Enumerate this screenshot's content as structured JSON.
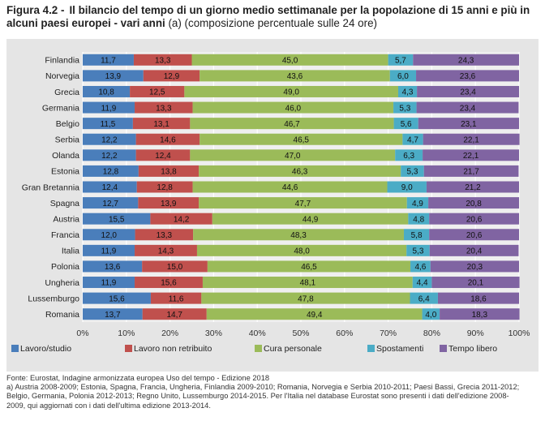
{
  "figure": {
    "number": "Figura 4.2 -",
    "title_bold": "Il bilancio del tempo di un giorno medio settimanale per la popolazione di 15 anni e più in alcuni paesi europei - vari anni",
    "title_note": "(a) (composizione percentuale sulle 24 ore)"
  },
  "colors": {
    "Lavoro/studio": "#4a7ebb",
    "Lavoro non retribuito": "#c0504d",
    "Cura personale": "#9bbb59",
    "Spostamenti": "#4bacc6",
    "Tempo libero": "#8064a2"
  },
  "chart_data": {
    "type": "bar",
    "orientation": "horizontal",
    "stacked": true,
    "categories": [
      "Finlandia",
      "Norvegia",
      "Grecia",
      "Germania",
      "Belgio",
      "Serbia",
      "Olanda",
      "Estonia",
      "Gran Bretannia",
      "Spagna",
      "Austria",
      "Francia",
      "Italia",
      "Polonia",
      "Ungheria",
      "Lussemburgo",
      "Romania"
    ],
    "series": [
      {
        "name": "Lavoro/studio",
        "values": [
          11.7,
          13.9,
          10.8,
          11.9,
          11.5,
          12.2,
          12.2,
          12.8,
          12.4,
          12.7,
          15.5,
          12.0,
          11.9,
          13.6,
          11.9,
          15.6,
          13.7
        ]
      },
      {
        "name": "Lavoro non retribuito",
        "values": [
          13.3,
          12.9,
          12.5,
          13.3,
          13.1,
          14.6,
          12.4,
          13.8,
          12.8,
          13.9,
          14.2,
          13.3,
          14.3,
          15.0,
          15.6,
          11.6,
          14.7
        ]
      },
      {
        "name": "Cura personale",
        "values": [
          45.0,
          43.6,
          49.0,
          46.0,
          46.7,
          46.5,
          47.0,
          46.3,
          44.6,
          47.7,
          44.9,
          48.3,
          48.0,
          46.5,
          48.1,
          47.8,
          49.4
        ]
      },
      {
        "name": "Spostamenti",
        "values": [
          5.7,
          6.0,
          4.3,
          5.3,
          5.6,
          4.7,
          6.3,
          5.3,
          9.0,
          4.9,
          4.8,
          5.8,
          5.3,
          4.6,
          4.4,
          6.4,
          4.0
        ]
      },
      {
        "name": "Tempo libero",
        "values": [
          24.3,
          23.6,
          23.4,
          23.4,
          23.1,
          22.1,
          22.1,
          21.7,
          21.2,
          20.8,
          20.6,
          20.6,
          20.4,
          20.3,
          20.1,
          18.6,
          18.3
        ]
      }
    ],
    "xlim": [
      0,
      100
    ],
    "xticks": [
      "0%",
      "10%",
      "20%",
      "30%",
      "40%",
      "50%",
      "60%",
      "70%",
      "80%",
      "90%",
      "100%"
    ],
    "grid": true,
    "legend_position": "bottom",
    "data_labels": true
  },
  "notes": {
    "source": "Fonte: Eurostat, Indagine armonizzata europea Uso del tempo - Edizione 2018",
    "note_a_1": "a) Austria 2008-2009; Estonia, Spagna, Francia, Ungheria, Finlandia 2009-2010; Romania, Norvegia e Serbia 2010-2011; Paesi Bassi, Grecia 2011-2012;",
    "note_a_2": "Belgio, Germania, Polonia 2012-2013; Regno Unito, Lussemburgo 2014-2015. Per l'Italia nel database Eurostat sono presenti i dati dell'edizione 2008-",
    "note_a_3": "2009, qui aggiornati con i dati dell'ultima edizione 2013-2014."
  }
}
